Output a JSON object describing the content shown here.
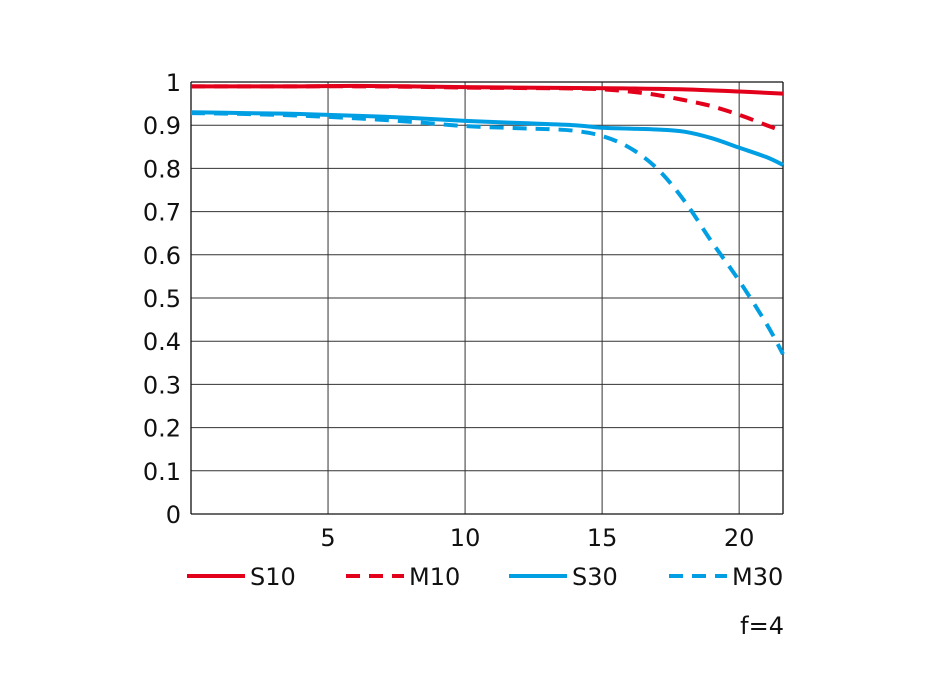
{
  "chart_data": {
    "type": "line",
    "xlabel": "",
    "ylabel": "",
    "xlim": [
      0,
      21.6
    ],
    "ylim": [
      0,
      1
    ],
    "x_ticks": [
      5,
      10,
      15,
      20
    ],
    "x_tick_labels": [
      "5",
      "10",
      "15",
      "20"
    ],
    "y_ticks": [
      0,
      0.1,
      0.2,
      0.3,
      0.4,
      0.5,
      0.6,
      0.7,
      0.8,
      0.9,
      1
    ],
    "y_tick_labels": [
      "0",
      "0.1",
      "0.2",
      "0.3",
      "0.4",
      "0.5",
      "0.6",
      "0.7",
      "0.8",
      "0.9",
      "1"
    ],
    "grid": true,
    "legend_position": "bottom",
    "annotation": "f=4",
    "series": [
      {
        "name": "S10",
        "color": "#e3001b",
        "dash": "solid",
        "points": [
          [
            0,
            0.99
          ],
          [
            2,
            0.99
          ],
          [
            4,
            0.99
          ],
          [
            6,
            0.991
          ],
          [
            8,
            0.99
          ],
          [
            10,
            0.988
          ],
          [
            12,
            0.987
          ],
          [
            14,
            0.986
          ],
          [
            16,
            0.985
          ],
          [
            18,
            0.983
          ],
          [
            20,
            0.978
          ],
          [
            21.6,
            0.973
          ]
        ]
      },
      {
        "name": "M10",
        "color": "#e3001b",
        "dash": "dashed",
        "points": [
          [
            0,
            0.99
          ],
          [
            2,
            0.99
          ],
          [
            4,
            0.99
          ],
          [
            6,
            0.99
          ],
          [
            8,
            0.989
          ],
          [
            10,
            0.987
          ],
          [
            12,
            0.986
          ],
          [
            14,
            0.985
          ],
          [
            15,
            0.983
          ],
          [
            16,
            0.978
          ],
          [
            17,
            0.97
          ],
          [
            18,
            0.958
          ],
          [
            19,
            0.944
          ],
          [
            20,
            0.924
          ],
          [
            21,
            0.9
          ],
          [
            21.6,
            0.886
          ]
        ]
      },
      {
        "name": "S30",
        "color": "#009fe3",
        "dash": "solid",
        "points": [
          [
            0,
            0.93
          ],
          [
            2,
            0.928
          ],
          [
            4,
            0.926
          ],
          [
            6,
            0.922
          ],
          [
            8,
            0.917
          ],
          [
            10,
            0.91
          ],
          [
            12,
            0.905
          ],
          [
            14,
            0.9
          ],
          [
            15,
            0.894
          ],
          [
            16,
            0.892
          ],
          [
            17,
            0.89
          ],
          [
            18,
            0.885
          ],
          [
            19,
            0.87
          ],
          [
            20,
            0.848
          ],
          [
            21,
            0.826
          ],
          [
            21.6,
            0.808
          ]
        ]
      },
      {
        "name": "M30",
        "color": "#009fe3",
        "dash": "dashed",
        "points": [
          [
            0,
            0.928
          ],
          [
            2,
            0.926
          ],
          [
            4,
            0.922
          ],
          [
            6,
            0.916
          ],
          [
            8,
            0.908
          ],
          [
            10,
            0.898
          ],
          [
            12,
            0.893
          ],
          [
            13,
            0.891
          ],
          [
            14,
            0.887
          ],
          [
            15,
            0.875
          ],
          [
            16,
            0.848
          ],
          [
            17,
            0.8
          ],
          [
            18,
            0.725
          ],
          [
            19,
            0.63
          ],
          [
            20,
            0.54
          ],
          [
            21,
            0.44
          ],
          [
            21.6,
            0.37
          ]
        ]
      }
    ]
  }
}
